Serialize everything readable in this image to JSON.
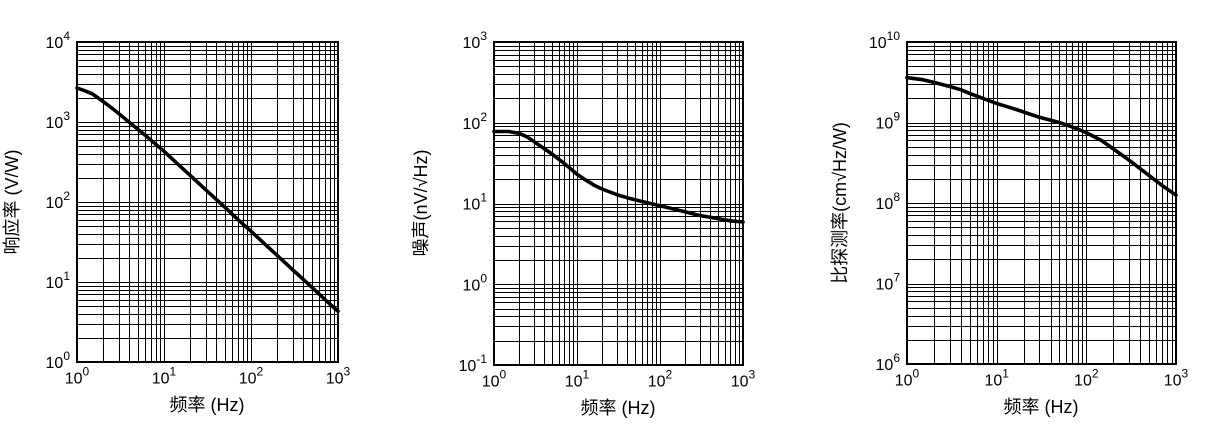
{
  "style": {
    "background": "#ffffff",
    "ink": "#000000"
  },
  "chart_data": [
    {
      "type": "line",
      "title": "",
      "xlabel": "频率 (Hz)",
      "ylabel": "响应率 (V/W)",
      "x_scale": "log",
      "y_scale": "log",
      "xlim": [
        1,
        1000
      ],
      "ylim": [
        1,
        10000
      ],
      "x_tick_exponents": [
        0,
        1,
        2,
        3
      ],
      "y_tick_exponents": [
        0,
        1,
        2,
        3,
        4
      ],
      "x_tick_labels": [
        "10⁰",
        "10¹",
        "10²",
        "10³"
      ],
      "y_tick_labels": [
        "10⁰",
        "10¹",
        "10²",
        "10³",
        "10⁴"
      ],
      "grid": "log major+minor, solid black",
      "legend": "none",
      "line_color": "#000000",
      "series": [
        {
          "points": [
            [
              1,
              2650
            ],
            [
              1.2,
              2480
            ],
            [
              1.5,
              2250
            ],
            [
              2,
              1800
            ],
            [
              2.5,
              1500
            ],
            [
              3,
              1280
            ],
            [
              4,
              990
            ],
            [
              5,
              810
            ],
            [
              6,
              690
            ],
            [
              8,
              530
            ],
            [
              10,
              430
            ],
            [
              15,
              287
            ],
            [
              20,
              215
            ],
            [
              30,
              143
            ],
            [
              50,
              86
            ],
            [
              70,
              61
            ],
            [
              100,
              43
            ],
            [
              150,
              28.7
            ],
            [
              200,
              21.5
            ],
            [
              300,
              14.3
            ],
            [
              500,
              8.6
            ],
            [
              700,
              6.1
            ],
            [
              1000,
              4.3
            ]
          ]
        }
      ]
    },
    {
      "type": "line",
      "title": "",
      "xlabel": "频率 (Hz)",
      "ylabel": "噪声(nV/√Hz)",
      "x_scale": "log",
      "y_scale": "log",
      "xlim": [
        1,
        1000
      ],
      "ylim": [
        0.1,
        1000
      ],
      "x_tick_exponents": [
        0,
        1,
        2,
        3
      ],
      "y_tick_exponents": [
        -1,
        0,
        1,
        2,
        3
      ],
      "x_tick_labels": [
        "10⁰",
        "10¹",
        "10²",
        "10³"
      ],
      "y_tick_labels": [
        "10⁻¹",
        "10⁰",
        "10¹",
        "10²",
        "10³"
      ],
      "grid": "log major+minor, solid black",
      "legend": "none",
      "line_color": "#000000",
      "series": [
        {
          "points": [
            [
              1,
              78
            ],
            [
              1.5,
              78
            ],
            [
              2,
              74
            ],
            [
              2.5,
              67
            ],
            [
              3,
              59
            ],
            [
              4,
              48
            ],
            [
              5,
              41
            ],
            [
              6,
              35.5
            ],
            [
              8,
              28
            ],
            [
              10,
              23
            ],
            [
              13,
              19.2
            ],
            [
              16,
              16.9
            ],
            [
              20,
              15.1
            ],
            [
              25,
              13.9
            ],
            [
              30,
              12.9
            ],
            [
              40,
              11.8
            ],
            [
              50,
              11.1
            ],
            [
              70,
              10.2
            ],
            [
              100,
              9.4
            ],
            [
              150,
              8.5
            ],
            [
              200,
              7.9
            ],
            [
              300,
              7.1
            ],
            [
              500,
              6.5
            ],
            [
              700,
              6.1
            ],
            [
              1000,
              5.9
            ]
          ]
        }
      ]
    },
    {
      "type": "line",
      "title": "",
      "xlabel": "频率 (Hz)",
      "ylabel": "比探测率(cm√Hz/W)",
      "x_scale": "log",
      "y_scale": "log",
      "xlim": [
        1,
        1000
      ],
      "ylim": [
        1000000,
        10000000000
      ],
      "x_tick_exponents": [
        0,
        1,
        2,
        3
      ],
      "y_tick_exponents": [
        6,
        7,
        8,
        9,
        10
      ],
      "x_tick_labels": [
        "10⁰",
        "10¹",
        "10²",
        "10³"
      ],
      "y_tick_labels": [
        "10⁶",
        "10⁷",
        "10⁸",
        "10⁹",
        "10¹⁰"
      ],
      "grid": "log major+minor, solid black",
      "legend": "none",
      "line_color": "#000000",
      "series": [
        {
          "points": [
            [
              1,
              3600000000.0
            ],
            [
              1.5,
              3400000000.0
            ],
            [
              2,
              3150000000.0
            ],
            [
              3,
              2800000000.0
            ],
            [
              4,
              2550000000.0
            ],
            [
              5,
              2300000000.0
            ],
            [
              7,
              2000000000.0
            ],
            [
              10,
              1720000000.0
            ],
            [
              15,
              1500000000.0
            ],
            [
              20,
              1350000000.0
            ],
            [
              30,
              1160000000.0
            ],
            [
              50,
              1000000000.0
            ],
            [
              70,
              880000000.0
            ],
            [
              100,
              750000000.0
            ],
            [
              150,
              590000000.0
            ],
            [
              200,
              470000000.0
            ],
            [
              300,
              340000000.0
            ],
            [
              500,
              220000000.0
            ],
            [
              700,
              165000000.0
            ],
            [
              1000,
              125000000.0
            ]
          ]
        }
      ]
    }
  ]
}
